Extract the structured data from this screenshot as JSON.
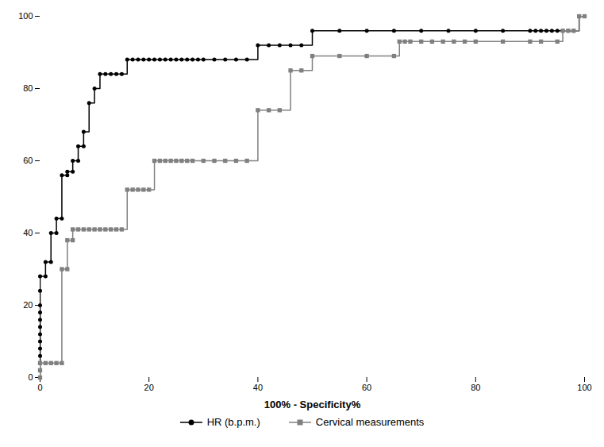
{
  "chart_data": {
    "type": "step",
    "xlabel": "100% - Specificity%",
    "xlim": [
      0,
      100
    ],
    "ylim": [
      0,
      100
    ],
    "xticks": [
      0,
      20,
      40,
      60,
      80,
      100
    ],
    "yticks": [
      0,
      20,
      40,
      60,
      80,
      100
    ],
    "grid": false,
    "legend": "bottom",
    "series": [
      {
        "name": "HR (b.p.m.)",
        "color": "#000000",
        "marker": "circle",
        "line_style": "solid",
        "x": [
          0,
          0,
          0,
          0,
          0,
          0,
          0,
          0,
          0,
          0,
          0,
          0,
          0,
          1,
          1,
          2,
          2,
          3,
          3,
          4,
          4,
          5,
          5,
          6,
          6,
          7,
          7,
          8,
          8,
          9,
          10,
          11,
          12,
          13,
          14,
          15,
          16,
          17,
          18,
          19,
          20,
          21,
          22,
          23,
          24,
          25,
          26,
          27,
          28,
          29,
          30,
          32,
          34,
          36,
          38,
          40,
          42,
          44,
          46,
          48,
          50,
          55,
          60,
          65,
          70,
          75,
          80,
          85,
          90,
          91,
          92,
          93,
          94,
          95,
          96,
          97,
          98,
          99,
          100
        ],
        "values": [
          0,
          2,
          4,
          6,
          8,
          10,
          12,
          14,
          16,
          18,
          20,
          24,
          28,
          28,
          32,
          32,
          40,
          40,
          44,
          44,
          56,
          56,
          57,
          57,
          60,
          60,
          64,
          64,
          68,
          76,
          80,
          84,
          84,
          84,
          84,
          84,
          88,
          88,
          88,
          88,
          88,
          88,
          88,
          88,
          88,
          88,
          88,
          88,
          88,
          88,
          88,
          88,
          88,
          88,
          88,
          92,
          92,
          92,
          92,
          92,
          96,
          96,
          96,
          96,
          96,
          96,
          96,
          96,
          96,
          96,
          96,
          96,
          96,
          96,
          96,
          96,
          96,
          100,
          100
        ]
      },
      {
        "name": "Cervical measurements",
        "color": "#808080",
        "marker": "square",
        "line_style": "solid",
        "x": [
          0,
          0,
          0,
          1,
          2,
          3,
          4,
          4,
          5,
          5,
          6,
          6,
          7,
          8,
          9,
          10,
          11,
          12,
          13,
          14,
          15,
          16,
          17,
          18,
          19,
          20,
          21,
          22,
          23,
          24,
          25,
          26,
          27,
          28,
          30,
          32,
          34,
          36,
          38,
          40,
          42,
          44,
          46,
          48,
          50,
          55,
          60,
          65,
          66,
          67,
          68,
          70,
          72,
          74,
          76,
          78,
          80,
          85,
          90,
          92,
          95,
          96,
          97,
          98,
          99,
          100
        ],
        "values": [
          0,
          2,
          4,
          4,
          4,
          4,
          4,
          30,
          30,
          38,
          38,
          41,
          41,
          41,
          41,
          41,
          41,
          41,
          41,
          41,
          41,
          52,
          52,
          52,
          52,
          52,
          60,
          60,
          60,
          60,
          60,
          60,
          60,
          60,
          60,
          60,
          60,
          60,
          60,
          74,
          74,
          74,
          85,
          85,
          89,
          89,
          89,
          89,
          93,
          93,
          93,
          93,
          93,
          93,
          93,
          93,
          93,
          93,
          93,
          93,
          93,
          96,
          96,
          96,
          100,
          100
        ]
      }
    ]
  }
}
